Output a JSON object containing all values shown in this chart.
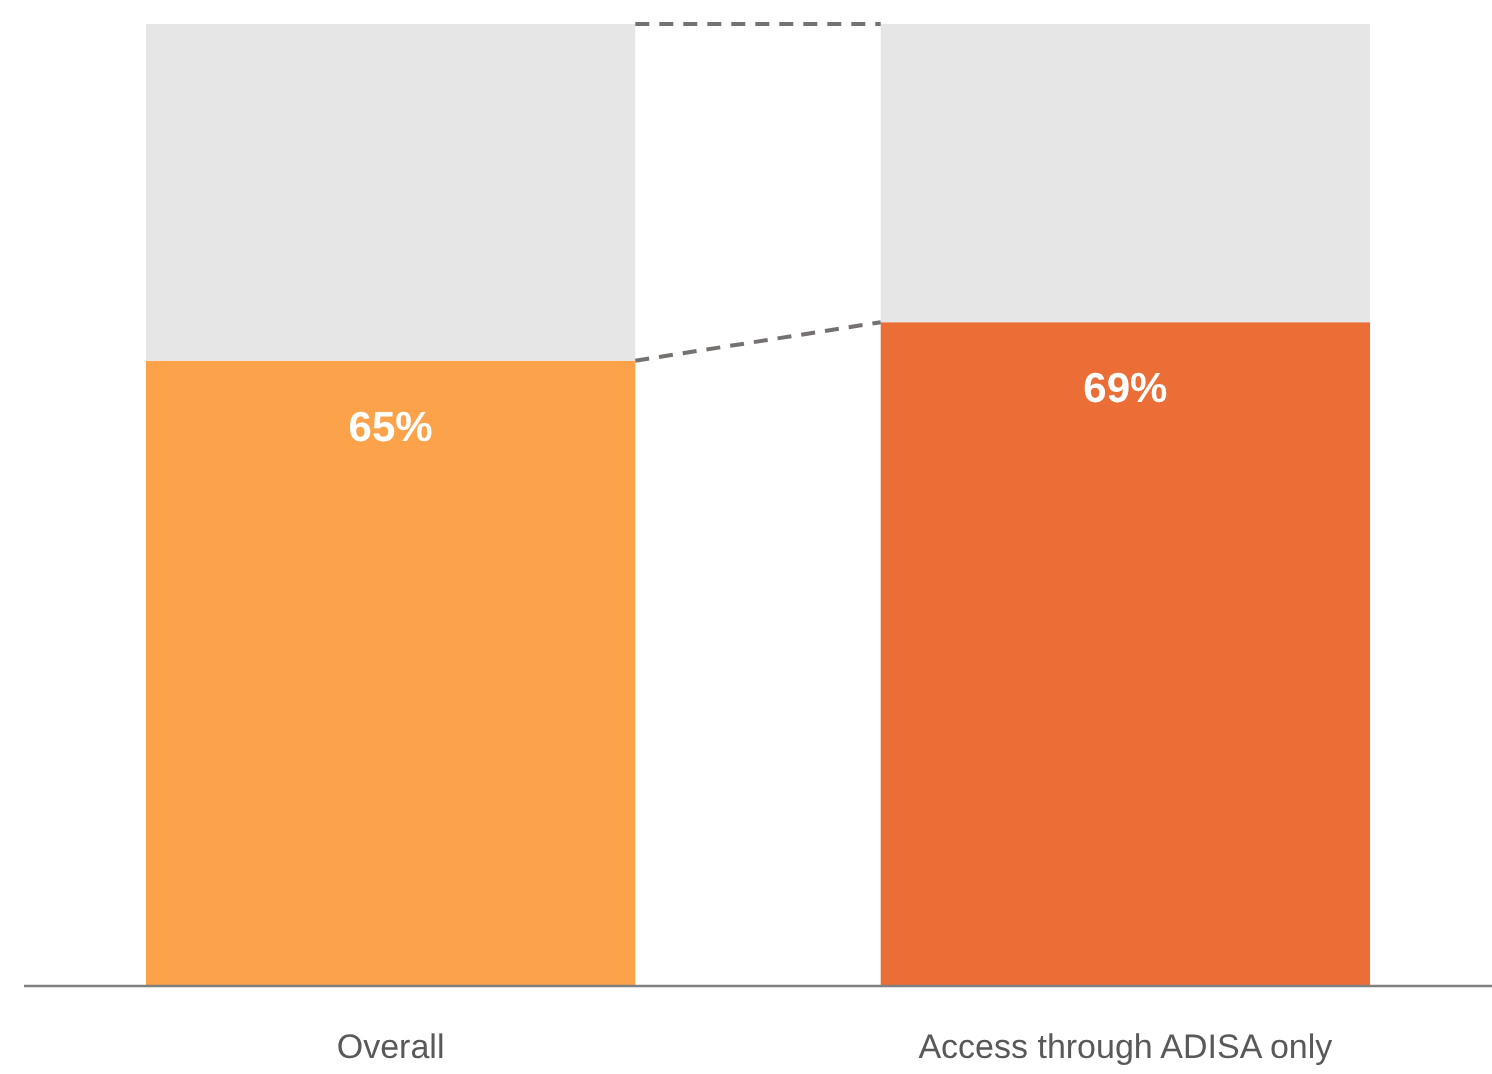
{
  "chart_data": {
    "type": "bar",
    "stacked": true,
    "categories": [
      "Overall",
      "Access through ADISA only"
    ],
    "ylim": [
      0,
      100
    ],
    "series": [
      {
        "values": [
          65,
          69
        ],
        "colors": [
          "#fba24b",
          "#ec6e37"
        ],
        "value_labels": [
          "65%",
          "69%"
        ]
      },
      {
        "values": [
          35,
          31
        ],
        "color": "#e7e6e6"
      }
    ]
  }
}
